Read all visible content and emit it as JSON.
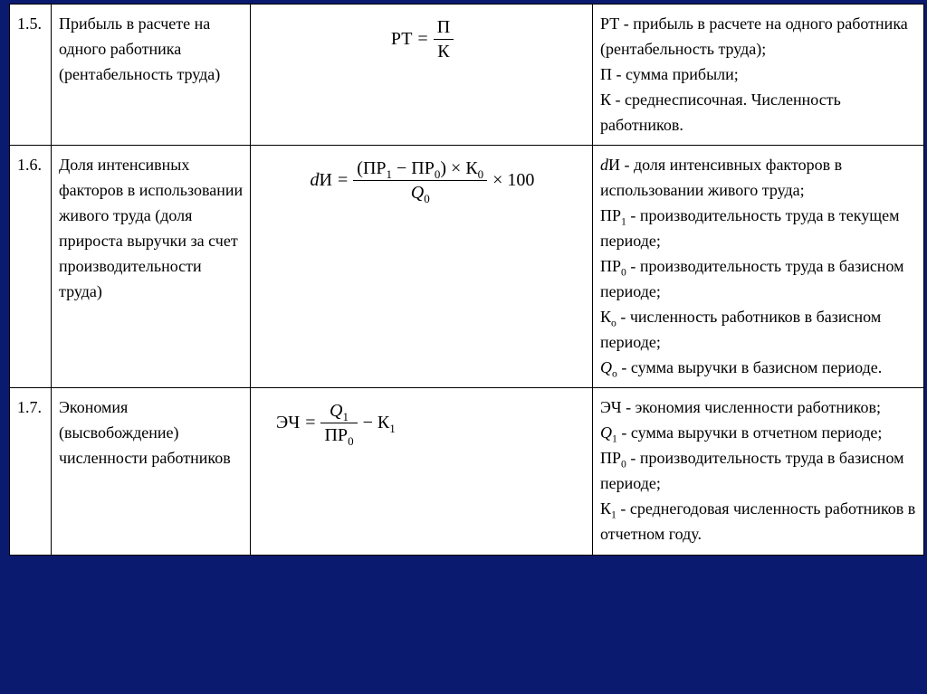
{
  "rows": [
    {
      "num": "1.5.",
      "name": "Прибыль в расчете на одного работника (рентабельность труда)",
      "formula": {
        "lhs": "РТ",
        "eq": "=",
        "frac_top": "П",
        "frac_bot": "К"
      },
      "desc_lines": [
        "РТ - прибыль в расчете на одного работника (рентабельность труда);",
        "П - сумма прибыли;",
        "К - среднесписочная. Численность работников."
      ]
    },
    {
      "num": "1.6.",
      "name": "Доля интенсивных факторов в использовании живого труда (доля прироста выручки за счет производительности труда)",
      "formula": {
        "lhs_html": "<span class='it'>d</span>И",
        "eq": "=",
        "frac_top_html": "(ПР<sub>1</sub> − ПР<sub>0</sub>) × К<sub>0</sub>",
        "frac_bot_html": "<span class='it'>Q</span><sub>0</sub>",
        "tail": "× 100"
      },
      "desc_html": "<span class='it'>d</span>И - доля интенсивных факторов в использовании живого труда;<br>ПР<sub>1</sub> - производительность труда в текущем периоде;<br>ПР<sub>0</sub> - производительность труда в базисном периоде;<br>К<sub>о</sub> - численность работников в базисном периоде;<br><span class='it'>Q</span><sub>о</sub> - сумма выручки в базисном периоде."
    },
    {
      "num": "1.7.",
      "name": "Экономия (высвобождение) численности работников",
      "formula": {
        "lhs": "ЭЧ",
        "eq": "=",
        "frac_top_html": "<span class='it'>Q</span><sub>1</sub>",
        "frac_bot_html": "ПР<sub>0</sub>",
        "tail_html": "− К<sub>1</sub>"
      },
      "desc_html": "ЭЧ - экономия численности работников;<br><span class='it'>Q</span><sub>1</sub> - сумма выручки в отчетном периоде;<br>ПР<sub>0</sub> - производительность труда в базисном периоде;<br>К<sub>1</sub> - среднегодовая численность работников в отчетном году."
    }
  ]
}
